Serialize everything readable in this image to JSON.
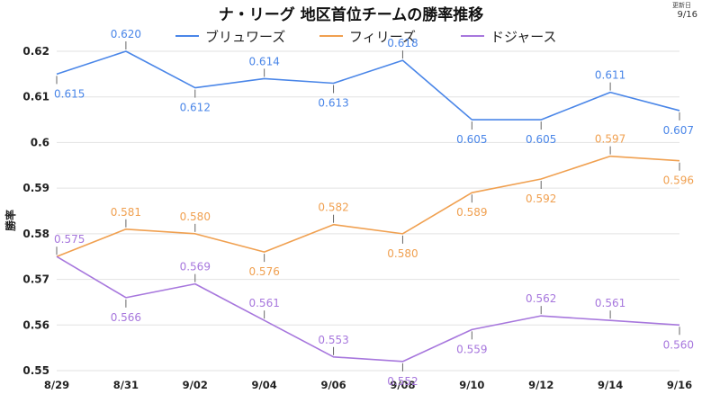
{
  "chart_data": {
    "type": "line",
    "title": "ナ・リーグ 地区首位チームの勝率推移",
    "updated_label": "更新日",
    "updated_date": "9/16",
    "ylabel": "勝率",
    "xlabel": "",
    "ylim": [
      0.55,
      0.62
    ],
    "yticks": [
      "0.55",
      "0.56",
      "0.57",
      "0.58",
      "0.59",
      "0.6",
      "0.61",
      "0.62"
    ],
    "grid": true,
    "legend_position": "top",
    "categories": [
      "8/29",
      "8/31",
      "9/02",
      "9/04",
      "9/06",
      "9/08",
      "9/10",
      "9/12",
      "9/14",
      "9/16"
    ],
    "series": [
      {
        "name": "ブリュワーズ",
        "color": "#4a86e8",
        "values": [
          0.615,
          0.62,
          0.612,
          0.614,
          0.613,
          0.618,
          0.605,
          0.605,
          0.611,
          0.607
        ],
        "labels": [
          "0.615",
          "0.620",
          "0.612",
          "0.614",
          "0.613",
          "0.618",
          "0.605",
          "0.605",
          "0.611",
          "0.607"
        ]
      },
      {
        "name": "フィリーズ",
        "color": "#f0a050",
        "values": [
          0.575,
          0.581,
          0.58,
          0.576,
          0.582,
          0.58,
          0.589,
          0.592,
          0.597,
          0.596
        ],
        "labels": [
          "",
          "0.581",
          "0.580",
          "0.576",
          "0.582",
          "0.580",
          "0.589",
          "0.592",
          "0.597",
          "0.596"
        ]
      },
      {
        "name": "ドジャース",
        "color": "#a777dd",
        "values": [
          0.575,
          0.566,
          0.569,
          0.561,
          0.553,
          0.552,
          0.559,
          0.562,
          0.561,
          0.56
        ],
        "labels": [
          "0.575",
          "0.566",
          "0.569",
          "0.561",
          "0.553",
          "0.552",
          "0.559",
          "0.562",
          "0.561",
          "0.560"
        ]
      }
    ]
  }
}
